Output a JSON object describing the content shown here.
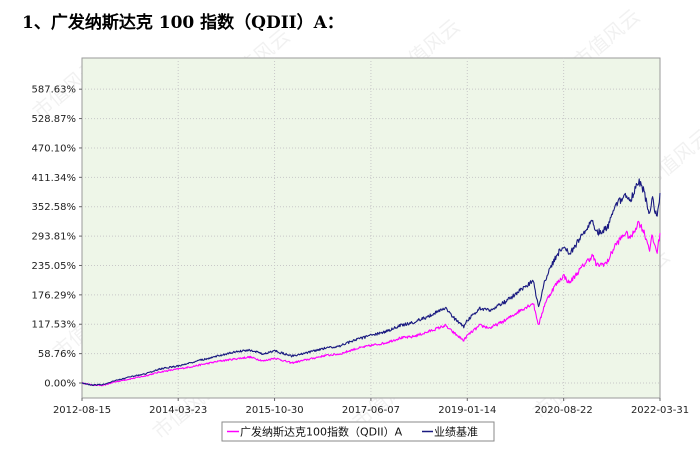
{
  "heading": "1、广发纳斯达克 100 指数（QDII）A：",
  "watermark": "市值风云",
  "chart_data": {
    "type": "line",
    "title": "",
    "xlabel": "",
    "ylabel": "",
    "x_ticks": [
      "2012-08-15",
      "2014-03-23",
      "2015-10-30",
      "2017-06-07",
      "2019-01-14",
      "2020-08-22",
      "2022-03-31"
    ],
    "y_ticks": [
      "0.00%",
      "58.76%",
      "117.53%",
      "176.29%",
      "235.05%",
      "293.81%",
      "352.58%",
      "411.34%",
      "470.10%",
      "528.87%",
      "587.63%"
    ],
    "ylim": [
      -30,
      650
    ],
    "xlim": [
      "2012-08-15",
      "2022-03-31"
    ],
    "grid": true,
    "legend_position": "bottom",
    "series": [
      {
        "name": "广发纳斯达克100指数（QDII）A",
        "color": "#ff00ff",
        "points": [
          [
            "2012-08-15",
            0
          ],
          [
            "2012-10-15",
            -4
          ],
          [
            "2012-12-20",
            -5
          ],
          [
            "2013-03-01",
            2
          ],
          [
            "2013-06-01",
            8
          ],
          [
            "2013-09-01",
            14
          ],
          [
            "2013-12-01",
            22
          ],
          [
            "2014-03-23",
            28
          ],
          [
            "2014-06-01",
            32
          ],
          [
            "2014-09-01",
            38
          ],
          [
            "2014-12-01",
            44
          ],
          [
            "2015-03-01",
            48
          ],
          [
            "2015-06-01",
            52
          ],
          [
            "2015-08-25",
            44
          ],
          [
            "2015-10-30",
            50
          ],
          [
            "2016-02-10",
            40
          ],
          [
            "2016-06-01",
            48
          ],
          [
            "2016-09-01",
            55
          ],
          [
            "2016-12-01",
            58
          ],
          [
            "2017-03-01",
            68
          ],
          [
            "2017-06-07",
            75
          ],
          [
            "2017-09-01",
            80
          ],
          [
            "2017-12-01",
            90
          ],
          [
            "2018-02-08",
            92
          ],
          [
            "2018-05-01",
            100
          ],
          [
            "2018-09-01",
            115
          ],
          [
            "2018-10-25",
            100
          ],
          [
            "2018-12-24",
            85
          ],
          [
            "2019-01-14",
            95
          ],
          [
            "2019-04-01",
            115
          ],
          [
            "2019-06-01",
            110
          ],
          [
            "2019-09-01",
            125
          ],
          [
            "2019-12-01",
            145
          ],
          [
            "2020-02-19",
            160
          ],
          [
            "2020-03-23",
            115
          ],
          [
            "2020-05-01",
            160
          ],
          [
            "2020-07-01",
            195
          ],
          [
            "2020-08-22",
            215
          ],
          [
            "2020-09-25",
            200
          ],
          [
            "2020-11-01",
            215
          ],
          [
            "2021-01-01",
            240
          ],
          [
            "2021-02-15",
            255
          ],
          [
            "2021-03-10",
            235
          ],
          [
            "2021-05-12",
            240
          ],
          [
            "2021-07-01",
            275
          ],
          [
            "2021-09-01",
            300
          ],
          [
            "2021-10-05",
            290
          ],
          [
            "2021-11-20",
            322
          ],
          [
            "2021-12-20",
            305
          ],
          [
            "2022-01-27",
            268
          ],
          [
            "2022-02-10",
            292
          ],
          [
            "2022-03-14",
            262
          ],
          [
            "2022-03-31",
            300
          ]
        ]
      },
      {
        "name": "业绩基准",
        "color": "#1a1a80",
        "points": [
          [
            "2012-08-15",
            0
          ],
          [
            "2012-10-15",
            -4
          ],
          [
            "2012-12-20",
            -3
          ],
          [
            "2013-03-01",
            4
          ],
          [
            "2013-06-01",
            12
          ],
          [
            "2013-09-01",
            18
          ],
          [
            "2013-12-01",
            28
          ],
          [
            "2014-03-23",
            34
          ],
          [
            "2014-06-01",
            40
          ],
          [
            "2014-09-01",
            48
          ],
          [
            "2014-12-01",
            55
          ],
          [
            "2015-03-01",
            62
          ],
          [
            "2015-06-01",
            66
          ],
          [
            "2015-08-25",
            58
          ],
          [
            "2015-10-30",
            64
          ],
          [
            "2016-02-10",
            54
          ],
          [
            "2016-06-01",
            62
          ],
          [
            "2016-09-01",
            70
          ],
          [
            "2016-12-01",
            74
          ],
          [
            "2017-03-01",
            86
          ],
          [
            "2017-06-07",
            95
          ],
          [
            "2017-09-01",
            102
          ],
          [
            "2017-12-01",
            115
          ],
          [
            "2018-02-08",
            120
          ],
          [
            "2018-05-01",
            130
          ],
          [
            "2018-09-01",
            150
          ],
          [
            "2018-10-25",
            130
          ],
          [
            "2018-12-24",
            112
          ],
          [
            "2019-01-14",
            125
          ],
          [
            "2019-04-01",
            150
          ],
          [
            "2019-06-01",
            145
          ],
          [
            "2019-09-01",
            162
          ],
          [
            "2019-12-01",
            185
          ],
          [
            "2020-02-19",
            205
          ],
          [
            "2020-03-23",
            150
          ],
          [
            "2020-05-01",
            205
          ],
          [
            "2020-07-01",
            250
          ],
          [
            "2020-08-22",
            275
          ],
          [
            "2020-09-25",
            258
          ],
          [
            "2020-11-01",
            275
          ],
          [
            "2021-01-01",
            305
          ],
          [
            "2021-02-15",
            325
          ],
          [
            "2021-03-10",
            300
          ],
          [
            "2021-05-12",
            308
          ],
          [
            "2021-07-01",
            350
          ],
          [
            "2021-09-01",
            380
          ],
          [
            "2021-10-05",
            368
          ],
          [
            "2021-11-20",
            405
          ],
          [
            "2021-12-20",
            385
          ],
          [
            "2022-01-27",
            340
          ],
          [
            "2022-02-10",
            370
          ],
          [
            "2022-03-14",
            330
          ],
          [
            "2022-03-31",
            380
          ]
        ]
      }
    ]
  }
}
